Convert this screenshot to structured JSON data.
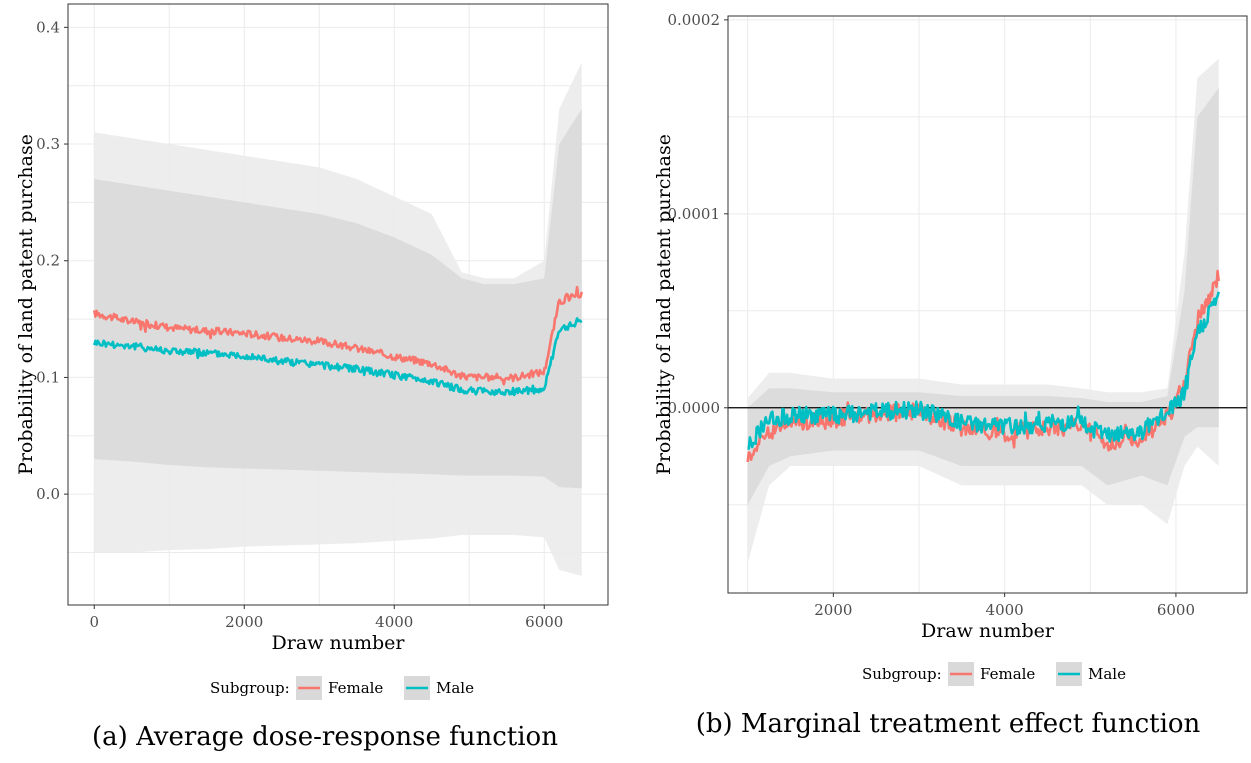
{
  "panels": [
    {
      "caption": "(a) Average dose-response function",
      "legend": {
        "title": "Subgroup:",
        "items": [
          "Female",
          "Male"
        ]
      }
    },
    {
      "caption": "(b) Marginal treatment effect function",
      "legend": {
        "title": "Subgroup:",
        "items": [
          "Female",
          "Male"
        ]
      }
    }
  ],
  "colors": {
    "female": "#F8766D",
    "male": "#00BFC4",
    "band_outer": "#EBEBEB",
    "band_inner": "#D9D9D9",
    "grid": "#EBEBEB"
  },
  "chart_data": [
    {
      "type": "line",
      "xlabel": "Draw number",
      "ylabel": "Probability of land patent purchase",
      "xlim": [
        -350,
        6850
      ],
      "ylim": [
        -0.095,
        0.42
      ],
      "xticks": [
        0,
        2000,
        4000,
        6000
      ],
      "xtick_labels": [
        "0",
        "2000",
        "4000",
        "6000"
      ],
      "yticks": [
        0.0,
        0.1,
        0.2,
        0.3,
        0.4
      ],
      "ytick_labels": [
        "0.0",
        "0.1",
        "0.2",
        "0.3",
        "0.4"
      ],
      "grid": true,
      "legend_position": "bottom",
      "x": [
        0,
        500,
        1000,
        1500,
        2000,
        2500,
        3000,
        3500,
        4000,
        4500,
        4900,
        5200,
        5600,
        6000,
        6200,
        6500
      ],
      "series": [
        {
          "name": "Female",
          "values": [
            0.155,
            0.148,
            0.143,
            0.14,
            0.138,
            0.134,
            0.131,
            0.125,
            0.118,
            0.112,
            0.101,
            0.1,
            0.1,
            0.105,
            0.165,
            0.172
          ]
        },
        {
          "name": "Male",
          "values": [
            0.13,
            0.127,
            0.123,
            0.121,
            0.119,
            0.114,
            0.111,
            0.107,
            0.102,
            0.097,
            0.089,
            0.088,
            0.088,
            0.09,
            0.14,
            0.15
          ]
        }
      ],
      "band_outer": {
        "upper": [
          0.31,
          0.305,
          0.3,
          0.295,
          0.29,
          0.285,
          0.28,
          0.27,
          0.255,
          0.24,
          0.19,
          0.185,
          0.185,
          0.2,
          0.33,
          0.37
        ],
        "lower": [
          -0.05,
          -0.05,
          -0.048,
          -0.047,
          -0.045,
          -0.044,
          -0.043,
          -0.042,
          -0.04,
          -0.038,
          -0.035,
          -0.035,
          -0.035,
          -0.037,
          -0.065,
          -0.07
        ]
      },
      "band_inner": {
        "upper": [
          0.27,
          0.265,
          0.26,
          0.255,
          0.25,
          0.245,
          0.24,
          0.232,
          0.22,
          0.205,
          0.185,
          0.18,
          0.18,
          0.185,
          0.3,
          0.33
        ],
        "lower": [
          0.03,
          0.028,
          0.025,
          0.023,
          0.022,
          0.021,
          0.02,
          0.019,
          0.018,
          0.017,
          0.016,
          0.016,
          0.016,
          0.015,
          0.006,
          0.005
        ]
      }
    },
    {
      "type": "line",
      "xlabel": "Draw number",
      "ylabel": "Probability of land patent purchase",
      "xlim": [
        770,
        6830
      ],
      "ylim": [
        -9.55e-05,
        0.000202
      ],
      "xticks": [
        2000,
        4000,
        6000
      ],
      "xtick_labels": [
        "2000",
        "4000",
        "6000"
      ],
      "yticks": [
        0.0,
        0.0001,
        0.0002
      ],
      "ytick_labels": [
        "0.0000",
        "0.0001",
        "0.0002"
      ],
      "grid": true,
      "legend_position": "bottom",
      "x": [
        1000,
        1250,
        1500,
        2000,
        2500,
        3000,
        3500,
        4000,
        4500,
        4900,
        5200,
        5600,
        5900,
        6100,
        6250,
        6500
      ],
      "series": [
        {
          "name": "Female",
          "values": [
            -2.5e-05,
            -1.2e-05,
            -8e-06,
            -6e-06,
            -3e-06,
            -2e-06,
            -1e-05,
            -1.3e-05,
            -1e-05,
            -1e-05,
            -1.8e-05,
            -1.5e-05,
            -5e-06,
            1.2e-05,
            4.5e-05,
            6.8e-05
          ]
        },
        {
          "name": "Male",
          "values": [
            -2e-05,
            -6e-06,
            -4e-06,
            -4e-06,
            -2e-06,
            -1e-06,
            -8e-06,
            -1e-05,
            -8e-06,
            -8e-06,
            -1.5e-05,
            -1.2e-05,
            -3e-06,
            8e-06,
            3.8e-05,
            5.8e-05
          ]
        }
      ],
      "band_outer": {
        "upper": [
          5e-06,
          1.8e-05,
          1.8e-05,
          1.5e-05,
          1.5e-05,
          1.5e-05,
          1.2e-05,
          1.2e-05,
          1.2e-05,
          1e-05,
          8e-06,
          8e-06,
          1e-05,
          8e-05,
          0.00017,
          0.00018
        ],
        "lower": [
          -8e-05,
          -4e-05,
          -3e-05,
          -3e-05,
          -3e-05,
          -3e-05,
          -4e-05,
          -4e-05,
          -4e-05,
          -4e-05,
          -5e-05,
          -5e-05,
          -6e-05,
          -3e-05,
          -2e-05,
          -3e-05
        ]
      },
      "band_inner": {
        "upper": [
          0.0,
          1e-05,
          1e-05,
          8e-06,
          8e-06,
          8e-06,
          6e-06,
          6e-06,
          6e-06,
          5e-06,
          3e-06,
          3e-06,
          6e-06,
          6e-05,
          0.00015,
          0.000165
        ],
        "lower": [
          -5e-05,
          -3e-05,
          -2.5e-05,
          -2.2e-05,
          -2.2e-05,
          -2.2e-05,
          -3e-05,
          -3e-05,
          -3e-05,
          -3e-05,
          -4e-05,
          -3.5e-05,
          -4e-05,
          -1.5e-05,
          -1e-05,
          -1e-05
        ]
      },
      "hline": 0
    }
  ]
}
